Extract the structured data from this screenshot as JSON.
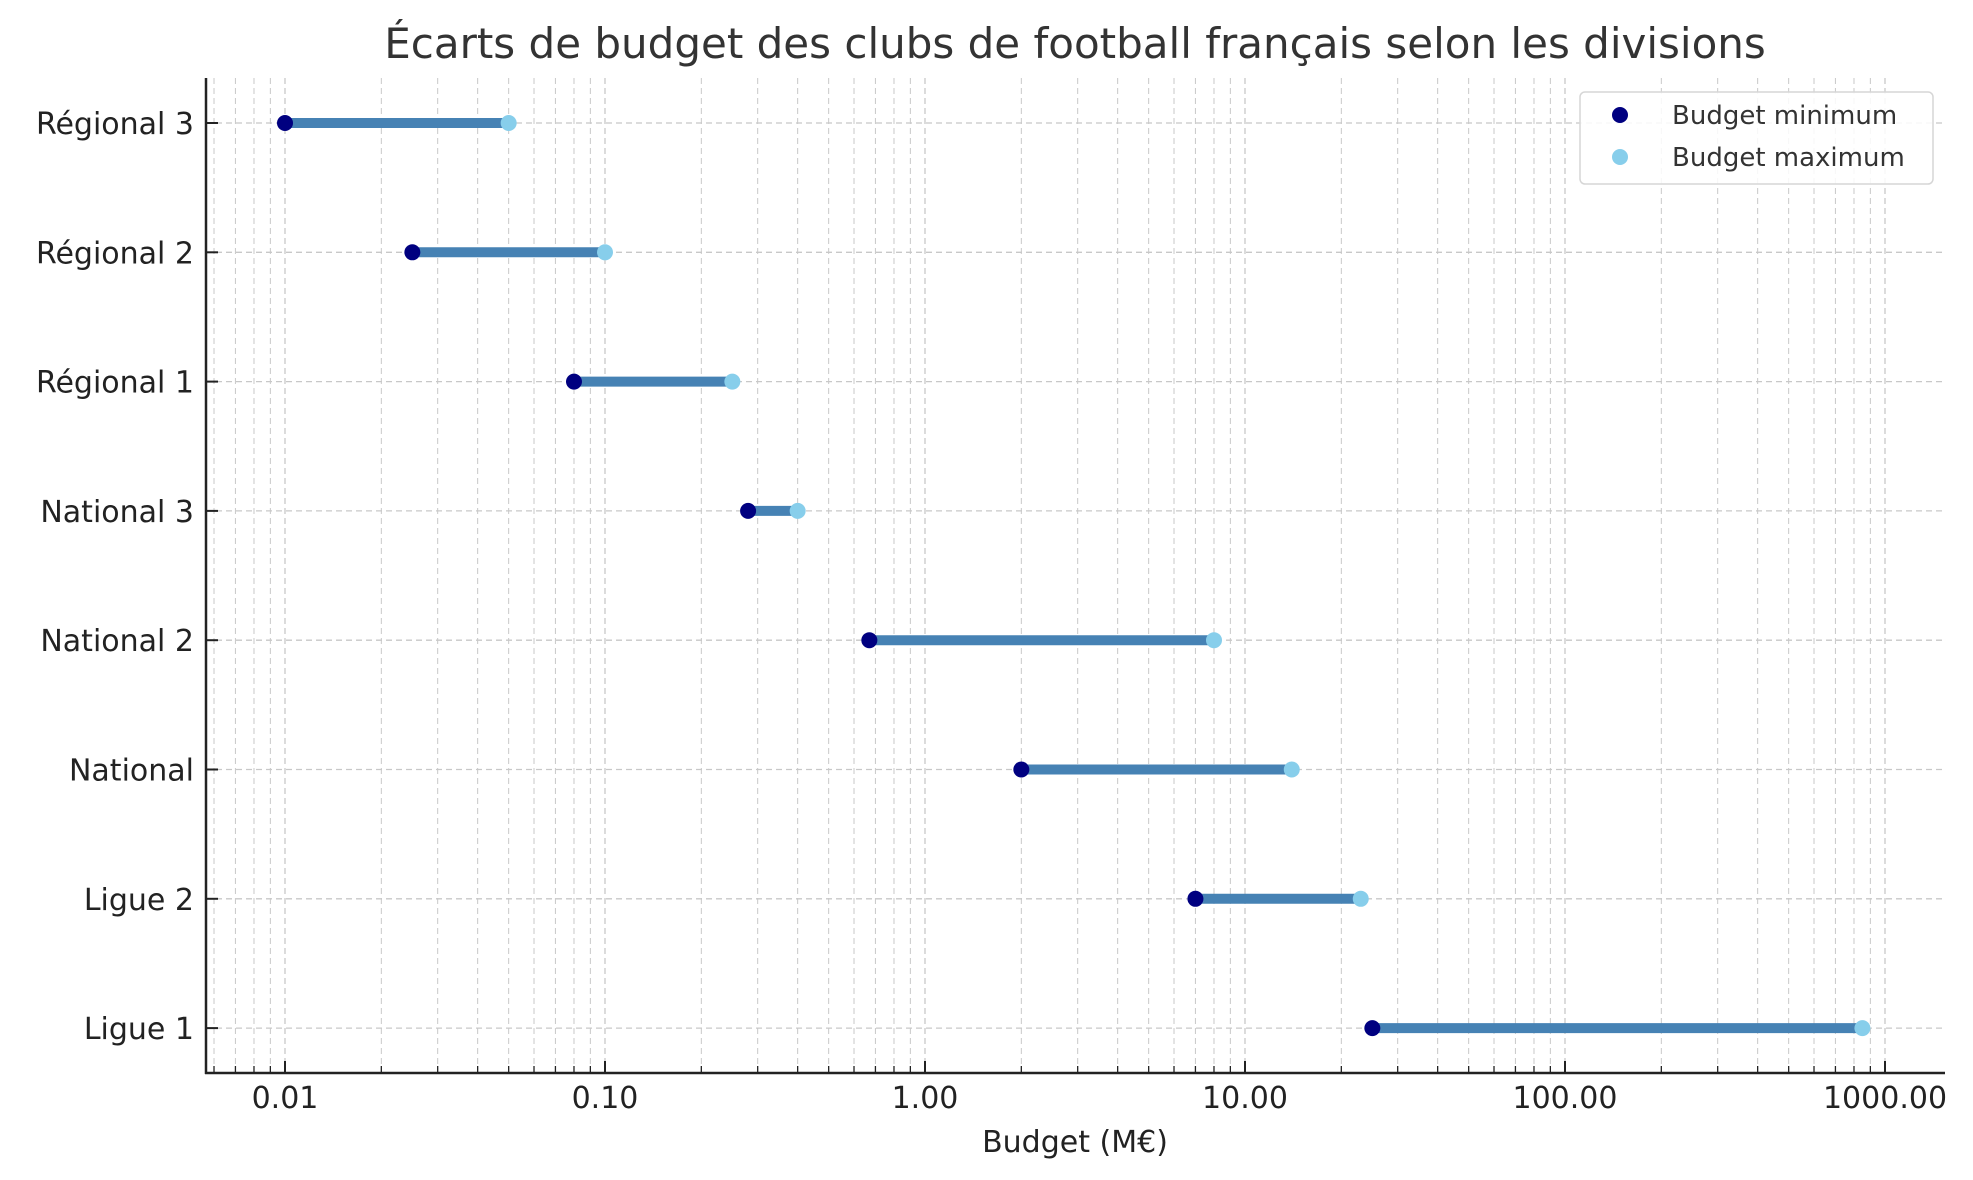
{
  "chart_data": {
    "type": "dumbbell",
    "title": "Écarts de budget des clubs de football français selon les divisions",
    "xlabel": "Budget (M€)",
    "ylabel": "",
    "xscale": "log",
    "xlim": [
      0.0057,
      1500
    ],
    "x_ticks": [
      0.01,
      0.1,
      1,
      10,
      100,
      1000
    ],
    "x_tick_labels": [
      "0.01",
      "0.10",
      "1.00",
      "10.00",
      "100.00",
      "1000.00"
    ],
    "grid": true,
    "legend_position": "upper right",
    "categories": [
      "Régional 3",
      "Régional 2",
      "Régional 1",
      "National 3",
      "National 2",
      "National",
      "Ligue 2",
      "Ligue 1"
    ],
    "series": [
      {
        "name": "Budget minimum",
        "color": "#000080",
        "values": [
          0.01,
          0.025,
          0.08,
          0.28,
          0.67,
          2.0,
          7.0,
          25.0
        ]
      },
      {
        "name": "Budget maximum",
        "color": "#87CEEB",
        "values": [
          0.05,
          0.1,
          0.25,
          0.4,
          8.0,
          14.0,
          23.0,
          850.0
        ]
      }
    ],
    "range_line_color": "#4682B4"
  },
  "legend": {
    "min_label": "Budget minimum",
    "max_label": "Budget maximum"
  }
}
